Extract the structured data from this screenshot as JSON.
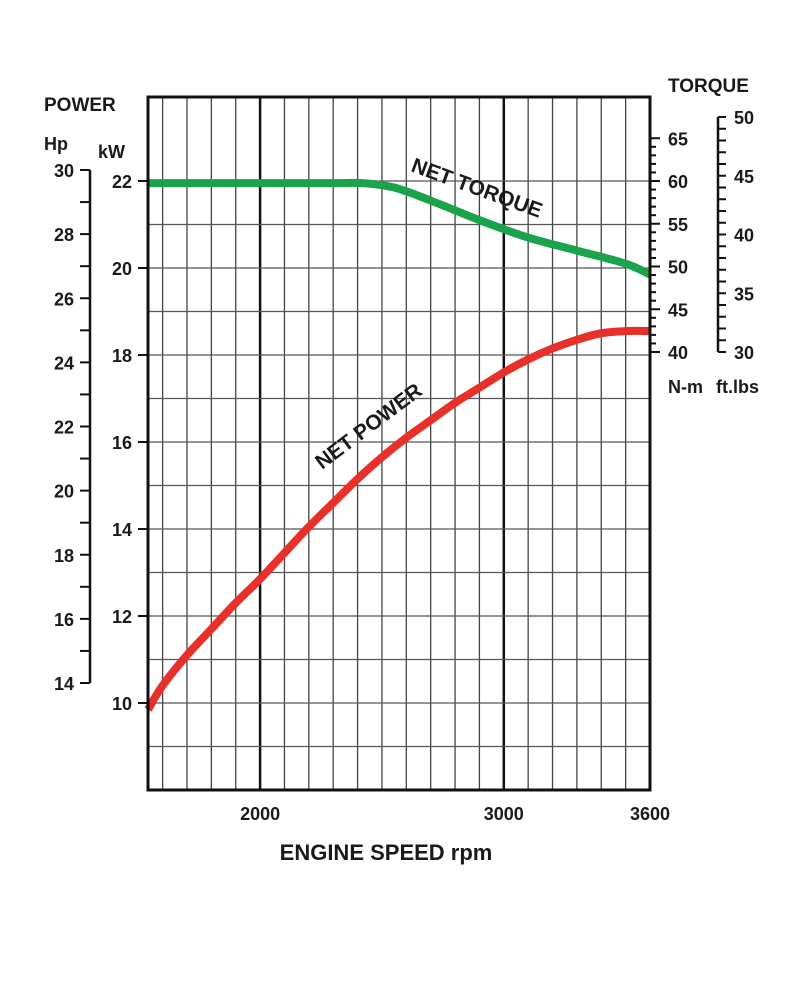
{
  "chart_data": {
    "type": "line",
    "xlabel": "ENGINE SPEED rpm",
    "xlim": [
      1540,
      3600
    ],
    "x_ticks": [
      2000,
      3000,
      3600
    ],
    "left_axis": {
      "title": "POWER",
      "kw": {
        "unit": "kW",
        "ylim": [
          8,
          23
        ],
        "ticks": [
          10,
          12,
          14,
          16,
          18,
          20,
          22
        ]
      },
      "hp": {
        "unit": "Hp",
        "range": [
          14,
          30
        ],
        "ticks": [
          14,
          16,
          18,
          20,
          22,
          24,
          26,
          28,
          30
        ]
      }
    },
    "right_axis": {
      "title": "TORQUE",
      "nm": {
        "unit": "N-m",
        "range": [
          40,
          65
        ],
        "ticks": [
          40,
          45,
          50,
          55,
          60,
          65
        ]
      },
      "ftlbs": {
        "unit": "ft.lbs",
        "range": [
          30,
          50
        ],
        "ticks": [
          30,
          35,
          40,
          45,
          50
        ]
      }
    },
    "series": [
      {
        "name": "NET TORQUE",
        "color": "#1aa34a",
        "axis": "kW",
        "x": [
          1540,
          1700,
          1900,
          2100,
          2300,
          2420,
          2550,
          2700,
          2900,
          3100,
          3300,
          3500,
          3600
        ],
        "y": [
          21.95,
          21.95,
          21.95,
          21.95,
          21.95,
          21.95,
          21.85,
          21.55,
          21.1,
          20.7,
          20.4,
          20.1,
          19.85
        ]
      },
      {
        "name": "NET POWER",
        "color": "#e8302a",
        "axis": "kW",
        "x": [
          1540,
          1600,
          1700,
          1800,
          1900,
          2000,
          2100,
          2200,
          2300,
          2400,
          2500,
          2600,
          2700,
          2800,
          2900,
          3000,
          3100,
          3200,
          3300,
          3400,
          3500,
          3600
        ],
        "y": [
          9.85,
          10.4,
          11.1,
          11.7,
          12.3,
          12.85,
          13.45,
          14.05,
          14.6,
          15.15,
          15.65,
          16.1,
          16.5,
          16.9,
          17.25,
          17.6,
          17.9,
          18.15,
          18.35,
          18.5,
          18.55,
          18.55
        ]
      }
    ]
  }
}
